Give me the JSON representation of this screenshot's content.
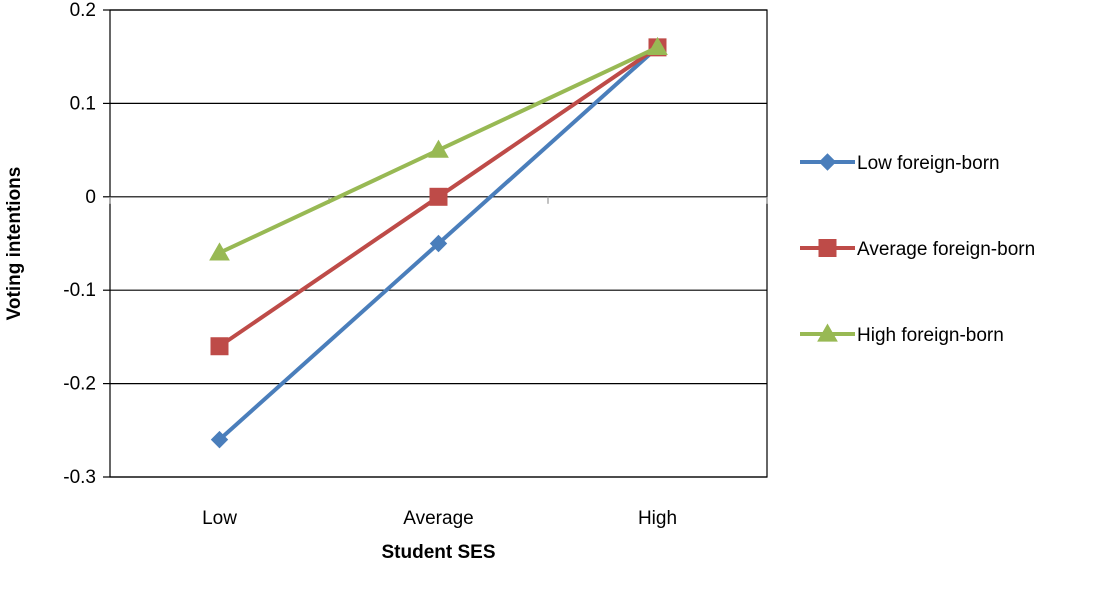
{
  "chart_data": {
    "type": "line",
    "xlabel": "Student SES",
    "ylabel": "Voting intentions",
    "categories": [
      "Low",
      "Average",
      "High"
    ],
    "ylim": [
      -0.3,
      0.2
    ],
    "yticks": [
      0.2,
      0.1,
      0,
      -0.1,
      -0.2,
      -0.3
    ],
    "ytick_labels": [
      "0.2",
      "0.1",
      "0",
      "-0.1",
      "-0.2",
      "-0.3"
    ],
    "grid": "horizontal",
    "legend_position": "right",
    "series": [
      {
        "name": "Low foreign-born",
        "values": [
          -0.26,
          -0.05,
          0.16
        ],
        "color": "#4a7ebb",
        "marker": "diamond"
      },
      {
        "name": "Average foreign-born",
        "values": [
          -0.16,
          0.0,
          0.16
        ],
        "color": "#be4b48",
        "marker": "square"
      },
      {
        "name": "High foreign-born",
        "values": [
          -0.06,
          0.05,
          0.16
        ],
        "color": "#98b954",
        "marker": "triangle"
      }
    ]
  }
}
